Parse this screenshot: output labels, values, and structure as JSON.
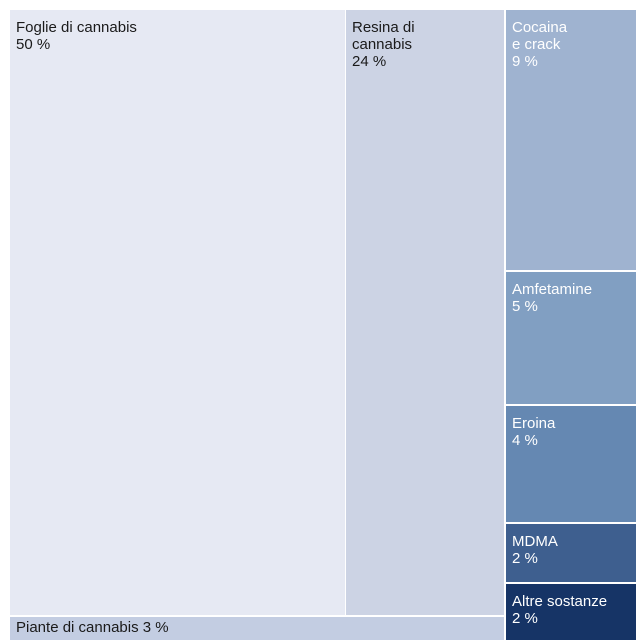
{
  "chart_data": {
    "type": "treemap",
    "items": [
      {
        "label": "Foglie di cannabis",
        "value": 50,
        "value_label": "50 %",
        "color": "#e6e9f3",
        "text_color": "#1a1a1a"
      },
      {
        "label": "Resina di\ncannabis",
        "value": 24,
        "value_label": "24 %",
        "color": "#ccd3e4",
        "text_color": "#1a1a1a"
      },
      {
        "label": "Cocaina\ne crack",
        "value": 9,
        "value_label": "9 %",
        "color": "#9fb3d0",
        "text_color": "#ffffff"
      },
      {
        "label": "Amfetamine",
        "value": 5,
        "value_label": "5 %",
        "color": "#819fc2",
        "text_color": "#ffffff"
      },
      {
        "label": "Eroina",
        "value": 4,
        "value_label": "4 %",
        "color": "#6588b2",
        "text_color": "#ffffff"
      },
      {
        "label": "MDMA",
        "value": 2,
        "value_label": "2 %",
        "color": "#3e5f8f",
        "text_color": "#ffffff"
      },
      {
        "label": "Altre sostanze",
        "value": 2,
        "value_label": "2 %",
        "color": "#163466",
        "text_color": "#ffffff"
      },
      {
        "label": "Piante di cannabis",
        "value": 3,
        "value_label": "3 %",
        "color": "#c3cde2",
        "text_color": "#1a1a1a"
      }
    ]
  }
}
